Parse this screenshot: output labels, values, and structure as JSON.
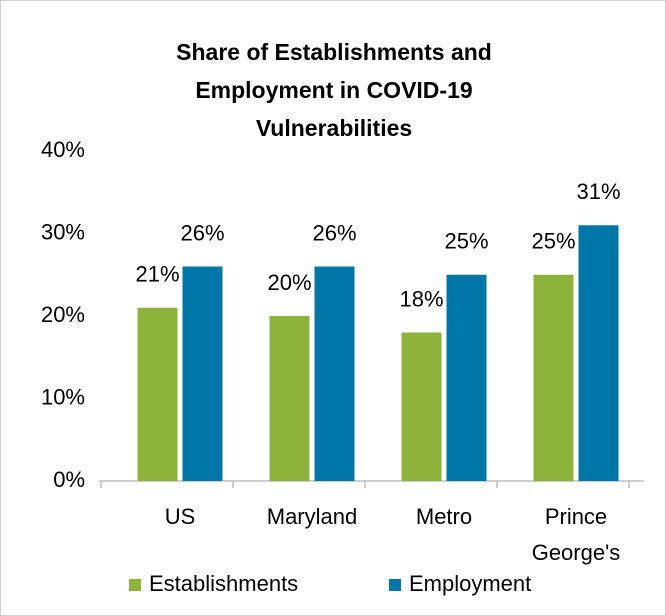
{
  "chart_data": {
    "type": "bar",
    "title": "Share of Establishments and Employment in COVID-19 Vulnerabilities",
    "categories": [
      "US",
      "Maryland",
      "Metro",
      "Prince George's"
    ],
    "series": [
      {
        "name": "Establishments",
        "color": "#8db33a",
        "values": [
          21,
          20,
          18,
          25
        ],
        "value_labels": [
          "21%",
          "20%",
          "18%",
          "25%"
        ]
      },
      {
        "name": "Employment",
        "color": "#0077a8",
        "values": [
          26,
          26,
          25,
          31
        ],
        "value_labels": [
          "26%",
          "26%",
          "25%",
          "31%"
        ]
      }
    ],
    "ylim": [
      0,
      40
    ],
    "yticks": [
      {
        "value": 0,
        "label": "0%"
      },
      {
        "value": 10,
        "label": "10%"
      },
      {
        "value": 20,
        "label": "20%"
      },
      {
        "value": 30,
        "label": "30%"
      },
      {
        "value": 40,
        "label": "40%"
      }
    ],
    "grid": false,
    "legend": "bottom"
  }
}
